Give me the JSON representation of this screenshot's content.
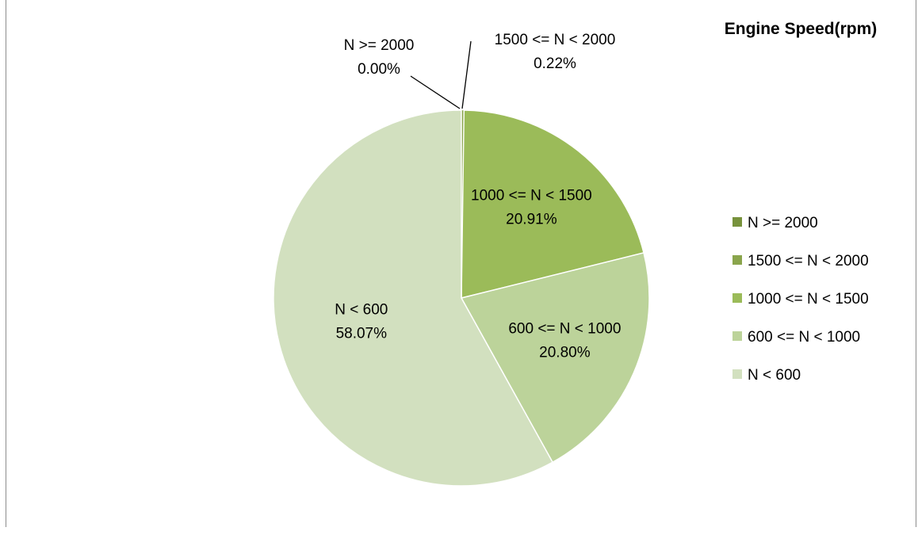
{
  "chart_data": {
    "type": "pie",
    "title": "Engine Speed(rpm)",
    "legend_position": "right",
    "slices": [
      {
        "name": "N >= 2000",
        "value": 0.0,
        "label": "0.00%",
        "color": "#77923c"
      },
      {
        "name": "1500 <= N < 2000",
        "value": 0.22,
        "label": "0.22%",
        "color": "#8aa54c"
      },
      {
        "name": "1000 <= N < 1500",
        "value": 20.91,
        "label": "20.91%",
        "color": "#9bbb59"
      },
      {
        "name": "600 <= N < 1000",
        "value": 20.8,
        "label": "20.80%",
        "color": "#bcd39a"
      },
      {
        "name": "N < 600",
        "value": 58.07,
        "label": "58.07%",
        "color": "#d2e0bf"
      }
    ]
  }
}
